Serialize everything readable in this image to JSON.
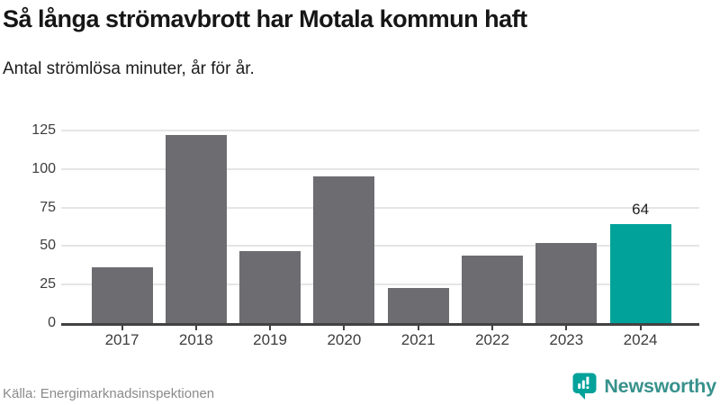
{
  "header": {
    "title": "Så långa strömavbrott har Motala kommun haft",
    "subtitle": "Antal strömlösa minuter, år för år."
  },
  "chart_data": {
    "type": "bar",
    "title": "Så långa strömavbrott har Motala kommun haft",
    "subtitle": "Antal strömlösa minuter, år för år.",
    "categories": [
      "2017",
      "2018",
      "2019",
      "2020",
      "2021",
      "2022",
      "2023",
      "2024"
    ],
    "values": [
      36,
      122,
      47,
      95,
      23,
      44,
      52,
      64
    ],
    "yticks": [
      0,
      25,
      50,
      75,
      100,
      125
    ],
    "ylim": [
      0,
      125
    ],
    "grid": true,
    "legend_position": "none",
    "bar_color": "#6c6c71",
    "highlight_index": 7,
    "highlight_color": "#00a29a",
    "highlight_value_label": "64"
  },
  "footer": {
    "source": "Källa: Energimarknadsinspektionen",
    "brand_name": "Newsworthy",
    "brand_icon_color": "#00a29a",
    "brand_text_color": "#38918c"
  }
}
